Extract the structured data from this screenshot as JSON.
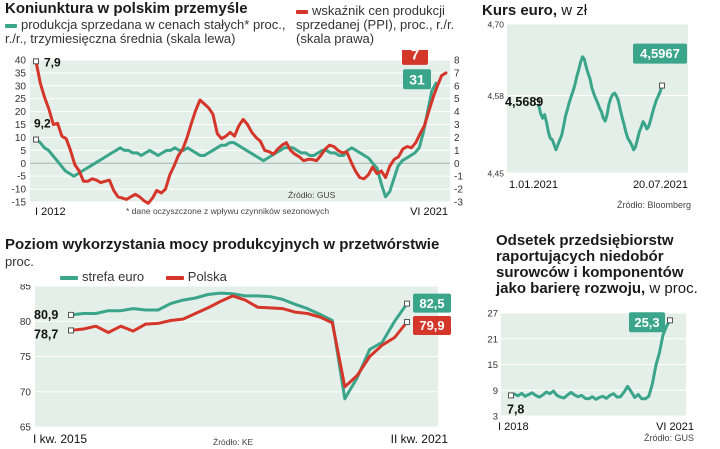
{
  "colors": {
    "green": "#3aa58a",
    "red": "#d5362a",
    "plot_bg": "#e4efea",
    "grid": "#ffffff"
  },
  "chart_data": [
    {
      "id": "koniunktura",
      "type": "line",
      "title": "Koniunktura w polskim przemyśle",
      "legend": [
        "produkcja sprzedana w cenach stałych* proc., r./r., trzymiesięczna średnia (skala lewa)",
        "wskaźnik cen produkcji sprzedanej (PPI), proc., r./r. (skala prawa)"
      ],
      "xlabels": [
        "I 2012",
        "VI 2021"
      ],
      "yleft_ticks": [
        "40",
        "35",
        "30",
        "25",
        "20",
        "15",
        "10",
        "5",
        "0",
        "-5",
        "-10",
        "-15"
      ],
      "yright_ticks": [
        "8",
        "7",
        "6",
        "5",
        "4",
        "3",
        "2",
        "1",
        "0",
        "-1",
        "-2",
        "-3"
      ],
      "ylim_left": [
        -15,
        40
      ],
      "ylim_right": [
        -3,
        8
      ],
      "source": "Źródło: GUS",
      "footnote": "* dane oczyszczone z wpływu czynników sezonowych",
      "labels": {
        "green_start": "9,2",
        "red_start": "7,9",
        "green_end": "31",
        "red_end": "7"
      },
      "series": [
        {
          "name": "produkcja sprzedana",
          "axis": "left",
          "values": [
            9.2,
            8,
            6,
            5,
            3,
            1,
            -1,
            -3,
            -4,
            -5,
            -4,
            -3,
            -2,
            -1,
            0,
            1,
            2,
            3,
            4,
            5,
            6,
            5,
            5,
            4,
            4,
            3,
            4,
            5,
            4,
            3,
            4,
            5,
            5,
            6,
            5,
            5,
            6,
            5,
            4,
            3,
            3,
            4,
            5,
            6,
            7,
            7,
            8,
            8,
            7,
            6,
            5,
            4,
            3,
            2,
            1,
            2,
            3,
            4,
            5,
            6,
            6,
            6,
            5,
            4,
            4,
            3,
            3,
            4,
            5,
            5,
            4,
            4,
            3,
            3,
            5,
            6,
            5,
            4,
            3,
            2,
            0,
            -2,
            -8,
            -13,
            -11,
            -6,
            -1,
            1,
            2,
            3,
            4,
            6,
            12,
            20,
            28,
            31
          ]
        },
        {
          "name": "PPI",
          "axis": "right",
          "values": [
            7.9,
            6.2,
            5.1,
            4.2,
            3,
            3.1,
            2.1,
            1.9,
            1,
            -0.1,
            -0.6,
            -1.4,
            -1.4,
            -1.2,
            -1.3,
            -1.5,
            -1.4,
            -1.3,
            -2.1,
            -2.6,
            -2.7,
            -2.8,
            -2.6,
            -2.4,
            -2.6,
            -2.9,
            -3.1,
            -2.7,
            -2.1,
            -2.3,
            -2.0,
            -0.9,
            -0.2,
            0.6,
            1.1,
            2.0,
            3.1,
            4.1,
            4.9,
            4.6,
            4.3,
            3.8,
            2.3,
            1.9,
            2.1,
            2.4,
            2.1,
            2.9,
            3.4,
            3.0,
            2.4,
            2.0,
            1.7,
            1.0,
            0.9,
            0.7,
            1.1,
            1.4,
            1.6,
            1.0,
            0.7,
            0.5,
            0.2,
            0.3,
            0.3,
            0.2,
            0.6,
            1.1,
            1.4,
            1.3,
            1.0,
            0.8,
            0.9,
            0.1,
            -0.6,
            -1.1,
            -1.2,
            -0.9,
            -0.3,
            -0.8,
            -0.6,
            -1.1,
            -0.2,
            0.3,
            0.5,
            1.1,
            1.3,
            1.2,
            1.6,
            2.3,
            2.9,
            4.0,
            5.1,
            6.0,
            6.8,
            7.0
          ]
        }
      ]
    },
    {
      "id": "kurs",
      "type": "line",
      "title": "Kurs euro,",
      "title_unit": "w zł",
      "xlabels": [
        "1.01.2021",
        "20.07.2021"
      ],
      "yticks": [
        "4,70",
        "4,58",
        "4,45"
      ],
      "ylim": [
        4.45,
        4.7
      ],
      "source": "Źródło: Bloomberg",
      "labels": {
        "start": "4,5689",
        "end": "4,5967"
      },
      "series": [
        {
          "name": "EUR/PLN",
          "values": [
            4.5689,
            4.562,
            4.549,
            4.542,
            4.548,
            4.535,
            4.519,
            4.508,
            4.506,
            4.498,
            4.489,
            4.497,
            4.505,
            4.513,
            4.528,
            4.545,
            4.556,
            4.568,
            4.578,
            4.587,
            4.598,
            4.612,
            4.623,
            4.636,
            4.645,
            4.641,
            4.628,
            4.617,
            4.608,
            4.593,
            4.583,
            4.575,
            4.568,
            4.559,
            4.553,
            4.542,
            4.537,
            4.548,
            4.566,
            4.576,
            4.582,
            4.584,
            4.579,
            4.571,
            4.556,
            4.543,
            4.531,
            4.518,
            4.508,
            4.503,
            4.497,
            4.489,
            4.494,
            4.506,
            4.519,
            4.527,
            4.536,
            4.531,
            4.524,
            4.528,
            4.539,
            4.551,
            4.562,
            4.572,
            4.579,
            4.586,
            4.5967
          ]
        }
      ]
    },
    {
      "id": "moce",
      "type": "line",
      "title": "Poziom wykorzystania mocy produkcyjnych w przetwórstwie",
      "subtitle": "proc.",
      "legend": [
        "strefa euro",
        "Polska"
      ],
      "xlabels": [
        "I kw. 2015",
        "II kw. 2021"
      ],
      "yticks": [
        "85",
        "80",
        "75",
        "70",
        "65"
      ],
      "ylim": [
        65,
        85
      ],
      "source": "Źródło: KE",
      "labels": {
        "green_start": "80,9",
        "red_start": "78,7",
        "green_end": "82,5",
        "red_end": "79,9"
      },
      "series": [
        {
          "name": "strefa euro",
          "values": [
            80.9,
            81.1,
            81.1,
            81.5,
            81.5,
            81.8,
            81.6,
            81.6,
            82.5,
            83.0,
            83.3,
            83.8,
            84.0,
            83.9,
            83.6,
            83.6,
            83.5,
            83.1,
            82.4,
            81.8,
            81.0,
            80.1,
            69.0,
            72.0,
            76.0,
            77.0,
            80.0,
            82.5
          ]
        },
        {
          "name": "Polska",
          "values": [
            78.7,
            78.9,
            79.3,
            78.4,
            79.3,
            78.6,
            79.6,
            79.7,
            80.1,
            80.3,
            81.1,
            81.9,
            82.8,
            83.6,
            83.0,
            82.0,
            81.9,
            81.8,
            81.3,
            81.1,
            80.6,
            79.8,
            70.7,
            72.3,
            75.0,
            76.6,
            77.7,
            79.9
          ]
        }
      ]
    },
    {
      "id": "odsetek",
      "type": "line",
      "title_lines": [
        "Odsetek przedsiębiorstw",
        "raportujących niedobór",
        "surowców i komponentów"
      ],
      "title_last": "jako barierę rozwoju,",
      "title_unit": "w proc.",
      "xlabels": [
        "I 2018",
        "VI 2021"
      ],
      "yticks": [
        "27",
        "21",
        "15",
        "9",
        "3"
      ],
      "ylim": [
        3,
        27
      ],
      "source": "Źródło: GUS",
      "labels": {
        "start": "7,8",
        "end": "25,3"
      },
      "series": [
        {
          "name": "odsetek",
          "values": [
            7.8,
            8.1,
            7.7,
            8.3,
            7.6,
            8.0,
            8.4,
            7.8,
            7.4,
            7.9,
            8.6,
            8.2,
            8.8,
            7.8,
            7.4,
            7.2,
            7.9,
            8.5,
            7.9,
            7.5,
            7.8,
            7.1,
            7.0,
            7.5,
            6.9,
            7.3,
            7.6,
            7.1,
            7.8,
            8.2,
            7.4,
            7.5,
            8.6,
            9.9,
            8.7,
            7.3,
            8.0,
            7.0,
            7.0,
            7.6,
            10.4,
            14.8,
            17.7,
            21.8,
            23.9,
            25.3
          ]
        }
      ]
    }
  ]
}
